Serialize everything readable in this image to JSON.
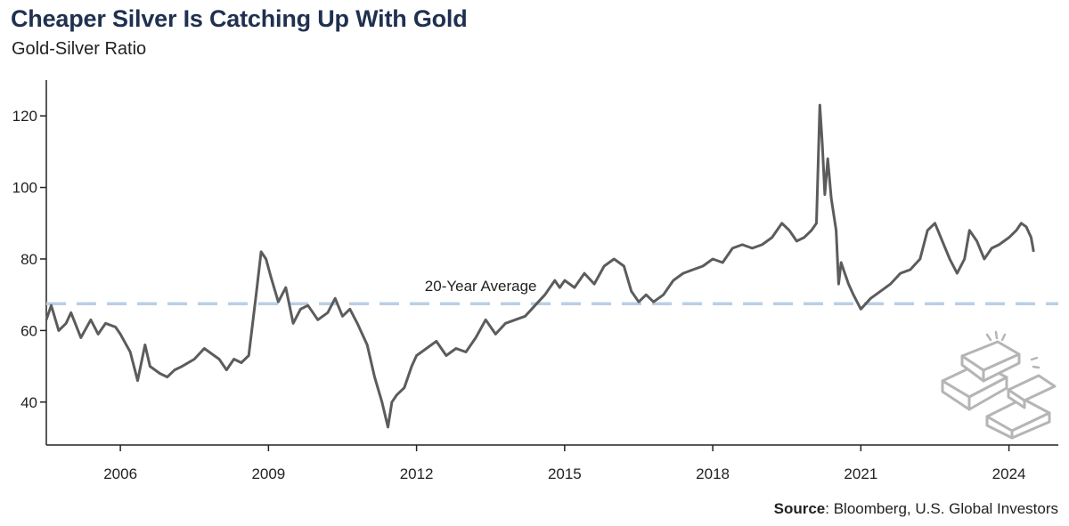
{
  "title": "Cheaper Silver Is Catching Up With Gold",
  "subtitle": "Gold-Silver Ratio",
  "source": {
    "label": "Source",
    "text": ": Bloomberg, U.S. Global Investors"
  },
  "colors": {
    "title": "#1f3050",
    "line": "#5c5c5c",
    "average": "#b9cfe6",
    "axis": "#222222",
    "icon": "#b5b5b5"
  },
  "icon": "gold-bars-icon",
  "chart_data": {
    "type": "line",
    "title": "Cheaper Silver Is Catching Up With Gold",
    "subtitle": "Gold-Silver Ratio",
    "ylabel": "",
    "xlabel": "",
    "ylim": [
      28,
      130
    ],
    "xlim": [
      2004.5,
      2025.0
    ],
    "yticks": [
      40,
      60,
      80,
      100,
      120
    ],
    "xticks": [
      {
        "value": 2006,
        "label": "2006"
      },
      {
        "value": 2009,
        "label": "2009"
      },
      {
        "value": 2012,
        "label": "2012"
      },
      {
        "value": 2015,
        "label": "2015"
      },
      {
        "value": 2018,
        "label": "2018"
      },
      {
        "value": 2021,
        "label": "2021"
      },
      {
        "value": 2024,
        "label": "2024"
      }
    ],
    "grid": false,
    "reference_line": {
      "label": "20-Year Average",
      "value": 67.5,
      "style": "dashed"
    },
    "series": [
      {
        "x": [
          2004.5,
          2004.6,
          2004.75,
          2004.9,
          2005.0,
          2005.2,
          2005.4,
          2005.55,
          2005.7,
          2005.9,
          2006.0,
          2006.2,
          2006.35,
          2006.5,
          2006.6,
          2006.8,
          2006.95,
          2007.1,
          2007.25,
          2007.5,
          2007.7,
          2007.9,
          2008.0,
          2008.15,
          2008.3,
          2008.45,
          2008.6,
          2008.75,
          2008.85,
          2008.95,
          2009.05,
          2009.2,
          2009.35,
          2009.5,
          2009.65,
          2009.8,
          2010.0,
          2010.2,
          2010.35,
          2010.5,
          2010.65,
          2010.8,
          2011.0,
          2011.15,
          2011.3,
          2011.42,
          2011.5,
          2011.6,
          2011.75,
          2011.9,
          2012.0,
          2012.2,
          2012.4,
          2012.6,
          2012.8,
          2013.0,
          2013.2,
          2013.4,
          2013.6,
          2013.8,
          2014.0,
          2014.2,
          2014.4,
          2014.6,
          2014.8,
          2014.9,
          2015.0,
          2015.2,
          2015.4,
          2015.6,
          2015.8,
          2016.0,
          2016.2,
          2016.35,
          2016.5,
          2016.65,
          2016.8,
          2017.0,
          2017.2,
          2017.4,
          2017.6,
          2017.8,
          2018.0,
          2018.2,
          2018.4,
          2018.6,
          2018.8,
          2019.0,
          2019.2,
          2019.4,
          2019.55,
          2019.7,
          2019.85,
          2020.0,
          2020.1,
          2020.17,
          2020.22,
          2020.27,
          2020.33,
          2020.4,
          2020.5,
          2020.55,
          2020.6,
          2020.65,
          2020.75,
          2020.85,
          2021.0,
          2021.2,
          2021.4,
          2021.6,
          2021.8,
          2022.0,
          2022.2,
          2022.35,
          2022.5,
          2022.65,
          2022.8,
          2022.95,
          2023.1,
          2023.2,
          2023.35,
          2023.5,
          2023.65,
          2023.8,
          2024.0,
          2024.15,
          2024.25,
          2024.35,
          2024.45,
          2024.5
        ],
        "values": [
          63,
          67,
          60,
          62,
          65,
          58,
          63,
          59,
          62,
          61,
          59,
          54,
          46,
          56,
          50,
          48,
          47,
          49,
          50,
          52,
          55,
          53,
          52,
          49,
          52,
          51,
          53,
          70,
          82,
          80,
          75,
          68,
          72,
          62,
          66,
          67,
          63,
          65,
          69,
          64,
          66,
          62,
          56,
          47,
          40,
          33,
          40,
          42,
          44,
          50,
          53,
          55,
          57,
          53,
          55,
          54,
          58,
          63,
          59,
          62,
          63,
          64,
          67,
          70,
          74,
          72,
          74,
          72,
          76,
          73,
          78,
          80,
          78,
          71,
          68,
          70,
          68,
          70,
          74,
          76,
          77,
          78,
          80,
          79,
          83,
          84,
          83,
          84,
          86,
          90,
          88,
          85,
          86,
          88,
          90,
          123,
          112,
          98,
          108,
          97,
          88,
          73,
          79,
          77,
          73,
          70,
          66,
          69,
          71,
          73,
          76,
          77,
          80,
          88,
          90,
          85,
          80,
          76,
          80,
          88,
          85,
          80,
          83,
          84,
          86,
          88,
          90,
          89,
          86,
          82
        ]
      }
    ]
  }
}
